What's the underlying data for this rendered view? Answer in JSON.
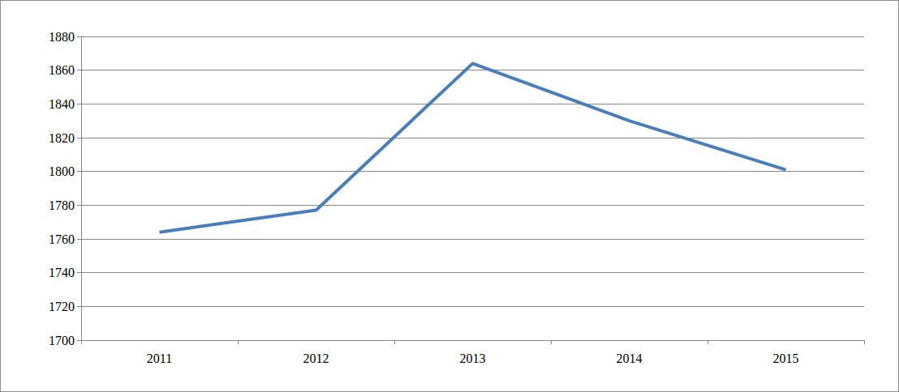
{
  "chart_data": {
    "type": "line",
    "categories": [
      "2011",
      "2012",
      "2013",
      "2014",
      "2015"
    ],
    "values": [
      1764,
      1777,
      1864,
      1830,
      1801
    ],
    "color": "#4a7ebb",
    "ylim": [
      1700,
      1880
    ],
    "yticks": [
      1700,
      1720,
      1740,
      1760,
      1780,
      1800,
      1820,
      1840,
      1860,
      1880
    ],
    "grid": true
  }
}
